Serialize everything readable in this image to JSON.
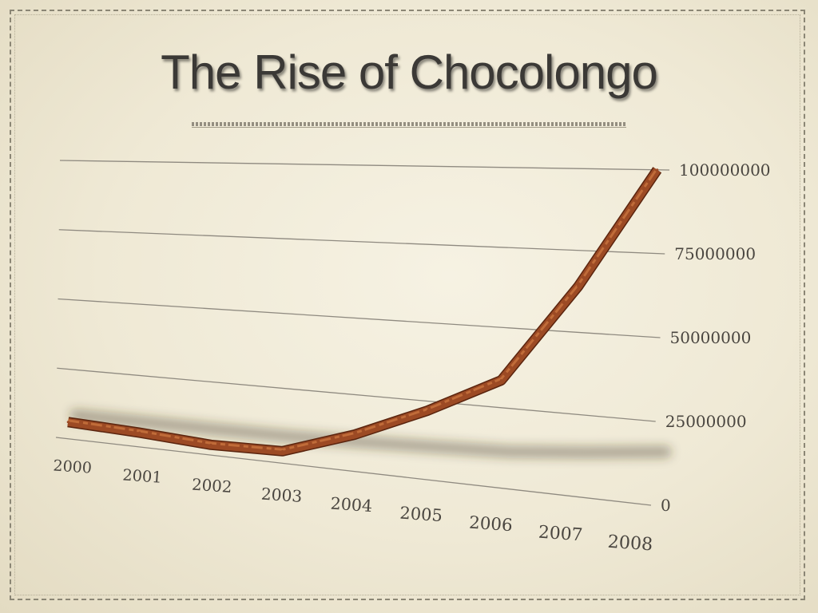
{
  "slide": {
    "title": "The Rise of Chocolongo"
  },
  "colors": {
    "line": "#9c4a24",
    "line_highlight": "#c9743f",
    "grid": "#8f8a80",
    "background": "#ece6d2"
  },
  "chart_data": {
    "type": "line",
    "title": "The Rise of Chocolongo",
    "xlabel": "",
    "ylabel": "",
    "categories": [
      "2000",
      "2001",
      "2002",
      "2003",
      "2004",
      "2005",
      "2006",
      "2007",
      "2008"
    ],
    "series": [
      {
        "values": [
          6000000,
          5000000,
          3500000,
          4000000,
          12000000,
          22000000,
          33500000,
          64000000,
          100000000
        ]
      }
    ],
    "yticks": [
      "0",
      "25000000",
      "50000000",
      "75000000",
      "100000000"
    ],
    "ylim": [
      0,
      100000000
    ],
    "grid": true,
    "legend": "none",
    "style": "3d-perspective"
  }
}
